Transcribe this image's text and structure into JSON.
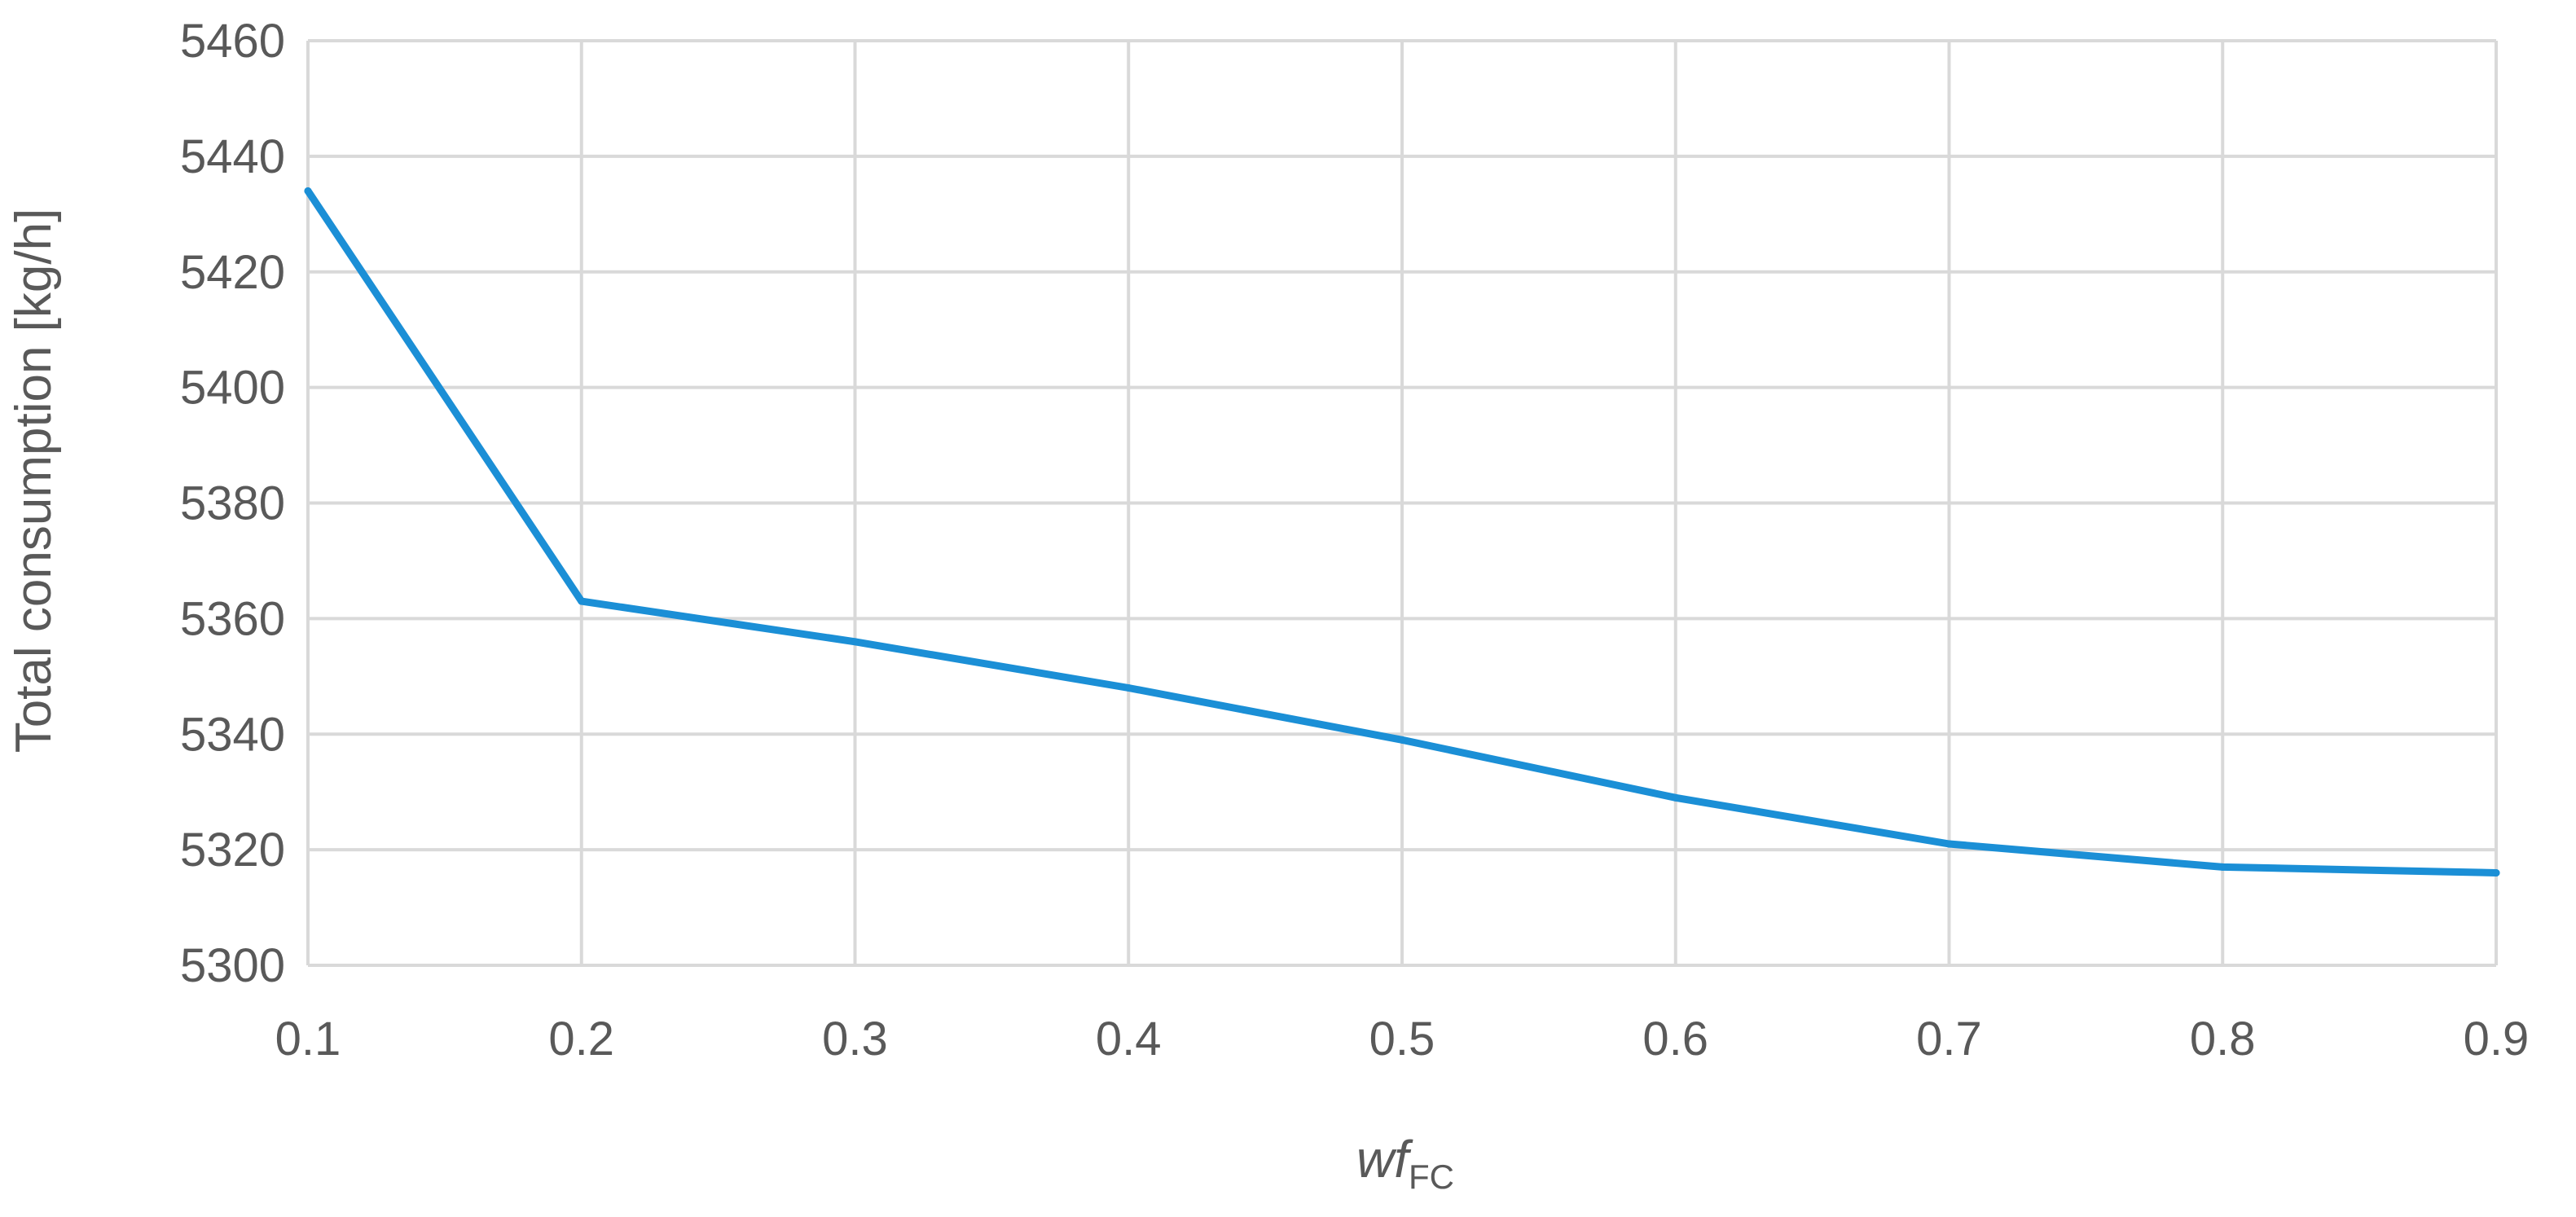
{
  "chart_data": {
    "type": "line",
    "x": [
      0.1,
      0.2,
      0.3,
      0.4,
      0.5,
      0.6,
      0.7,
      0.8,
      0.9
    ],
    "series": [
      {
        "values": [
          5434,
          5363,
          5356,
          5348,
          5339,
          5329,
          5321,
          5317,
          5316
        ],
        "color": "#1b8fd6"
      }
    ],
    "xticks": [
      "0.1",
      "0.2",
      "0.3",
      "0.4",
      "0.5",
      "0.6",
      "0.7",
      "0.8",
      "0.9"
    ],
    "yticks": [
      "5300",
      "5320",
      "5340",
      "5360",
      "5380",
      "5400",
      "5420",
      "5440",
      "5460"
    ],
    "xlim": [
      0.1,
      0.9
    ],
    "ylim": [
      5300,
      5460
    ],
    "xlabel_main": "wf",
    "xlabel_sub": "FC",
    "ylabel": "Total consumption [kg/h]",
    "grid": true,
    "gridColor": "#d9d9d9"
  }
}
